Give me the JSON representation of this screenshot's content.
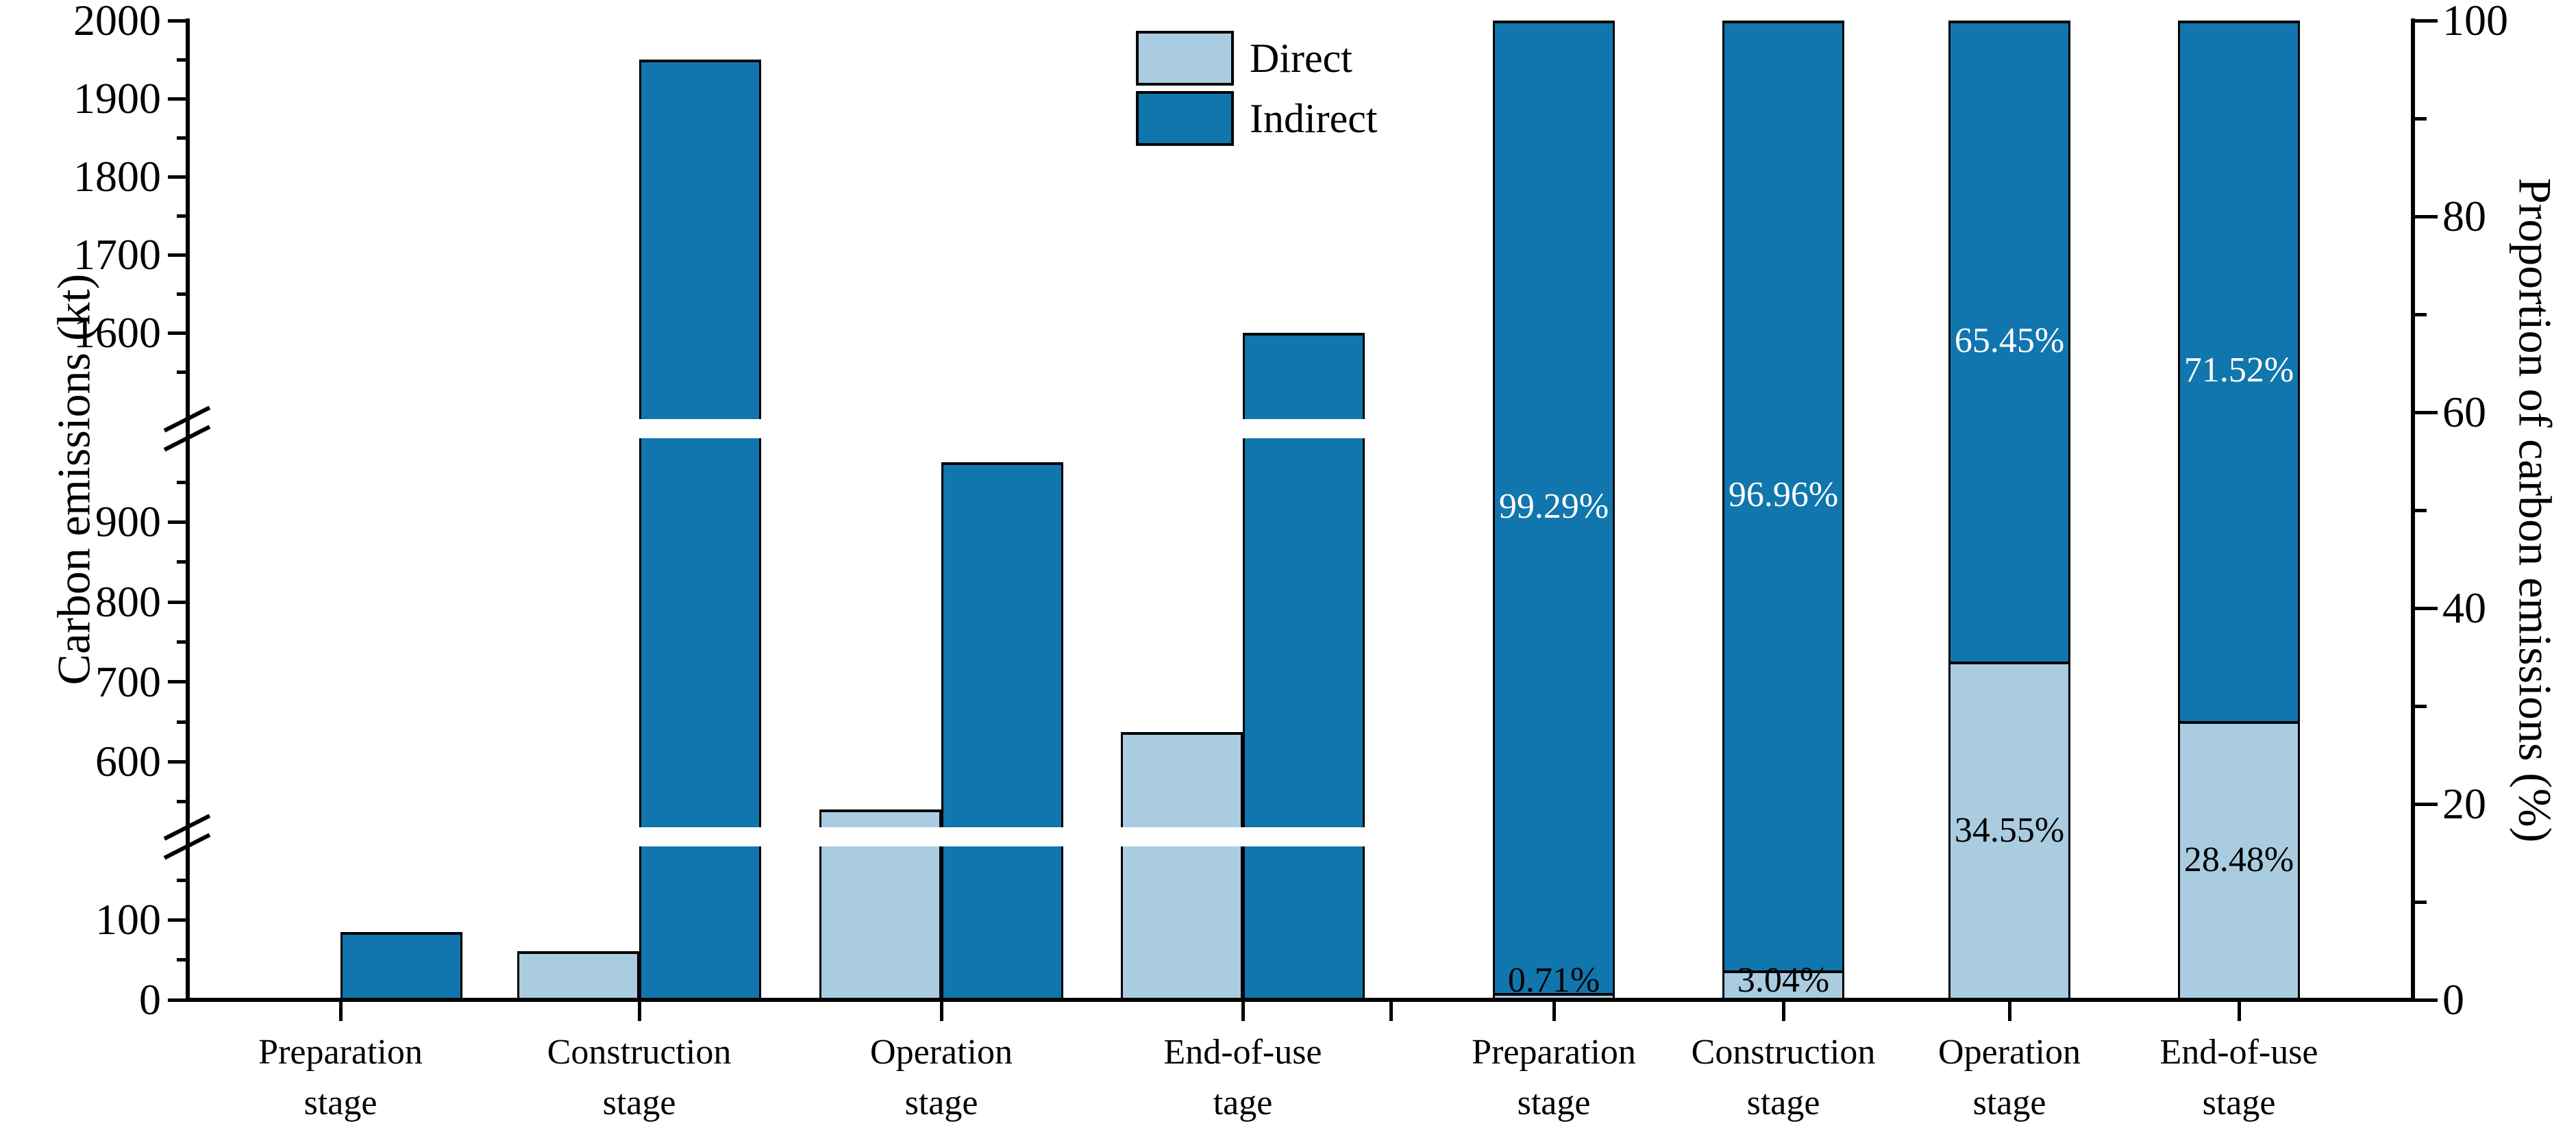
{
  "figure": {
    "title": "",
    "background": "#ffffff",
    "colors": {
      "direct": "#a9cce0",
      "indirect": "#1176ad",
      "axis": "#000000",
      "bar_edge": "#000000",
      "label_on_dark": "#ffffff",
      "label_on_light": "#000000"
    },
    "left_axis_label": "Carbon emissions (kt)",
    "right_axis_label": "Proportion of carbon emissions (%)",
    "legend": {
      "items": [
        {
          "label": "Direct",
          "color_key": "direct"
        },
        {
          "label": "Indirect",
          "color_key": "indirect"
        }
      ]
    }
  },
  "chart_data": [
    {
      "type": "bar",
      "subtype": "grouped",
      "title": "",
      "xlabel": "",
      "ylabel": "Carbon emissions (kt)",
      "categories": [
        [
          "Preparation",
          "stage"
        ],
        [
          "Construction",
          "stage"
        ],
        [
          "Operation",
          "stage"
        ],
        [
          "End-of-use",
          "tage"
        ]
      ],
      "series": [
        {
          "name": "Direct",
          "color_key": "direct",
          "values": [
            0.6,
            61,
            540,
            637
          ]
        },
        {
          "name": "Indirect",
          "color_key": "indirect",
          "values": [
            85,
            1950,
            975,
            1600
          ]
        }
      ],
      "ylim": [
        0,
        2000
      ],
      "broken_axis_segments": [
        [
          0,
          192
        ],
        [
          518,
          1005
        ],
        [
          1490,
          2000
        ]
      ],
      "yticks": [
        0,
        100,
        600,
        700,
        800,
        900,
        1600,
        1700,
        1800,
        1900,
        2000
      ],
      "grid": false,
      "legend_position": "top, right of center of left panel"
    },
    {
      "type": "bar",
      "subtype": "stacked_percent",
      "title": "",
      "xlabel": "",
      "ylabel": "Proportion of carbon emissions (%)",
      "categories": [
        [
          "Preparation",
          "stage"
        ],
        [
          "Construction",
          "stage"
        ],
        [
          "Operation",
          "stage"
        ],
        [
          "End-of-use",
          "stage"
        ]
      ],
      "series": [
        {
          "name": "Direct",
          "color_key": "direct",
          "values": [
            0.71,
            3.04,
            34.55,
            28.48
          ],
          "labels": [
            "0.71%",
            "3.04%",
            "34.55%",
            "28.48%"
          ]
        },
        {
          "name": "Indirect",
          "color_key": "indirect",
          "values": [
            99.29,
            96.96,
            65.45,
            71.52
          ],
          "labels": [
            "99.29%",
            "96.96%",
            "65.45%",
            "71.52%"
          ]
        }
      ],
      "ylim": [
        0,
        100
      ],
      "yticks": [
        0,
        20,
        40,
        60,
        80,
        100
      ],
      "grid": false
    }
  ]
}
